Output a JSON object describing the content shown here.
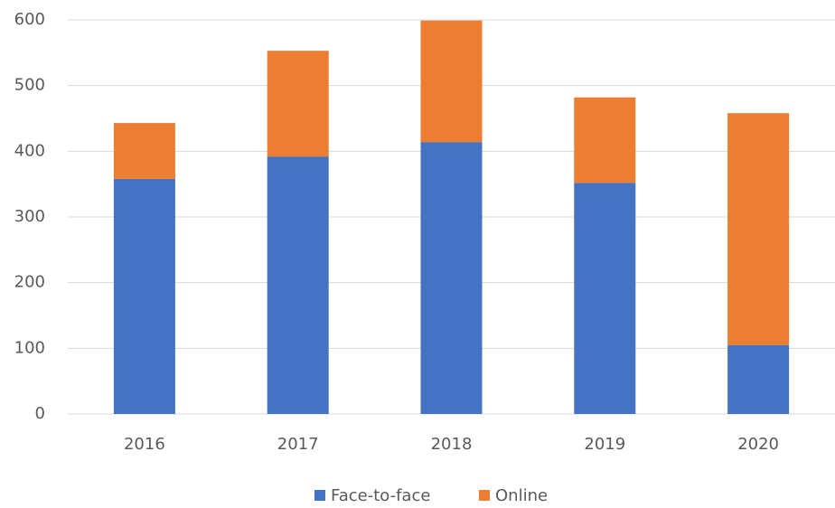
{
  "chart_data": {
    "type": "stacked_bar",
    "categories": [
      "2016",
      "2017",
      "2018",
      "2019",
      "2020"
    ],
    "series": [
      {
        "name": "Face-to-face",
        "color": "#4472c4",
        "values": [
          358,
          392,
          414,
          352,
          105
        ]
      },
      {
        "name": "Online",
        "color": "#ed7d31",
        "values": [
          85,
          161,
          185,
          130,
          353
        ]
      }
    ],
    "ylim": [
      0,
      600
    ],
    "yticks": [
      0,
      100,
      200,
      300,
      400,
      500,
      600
    ],
    "grid": true,
    "legend": "bottom"
  }
}
